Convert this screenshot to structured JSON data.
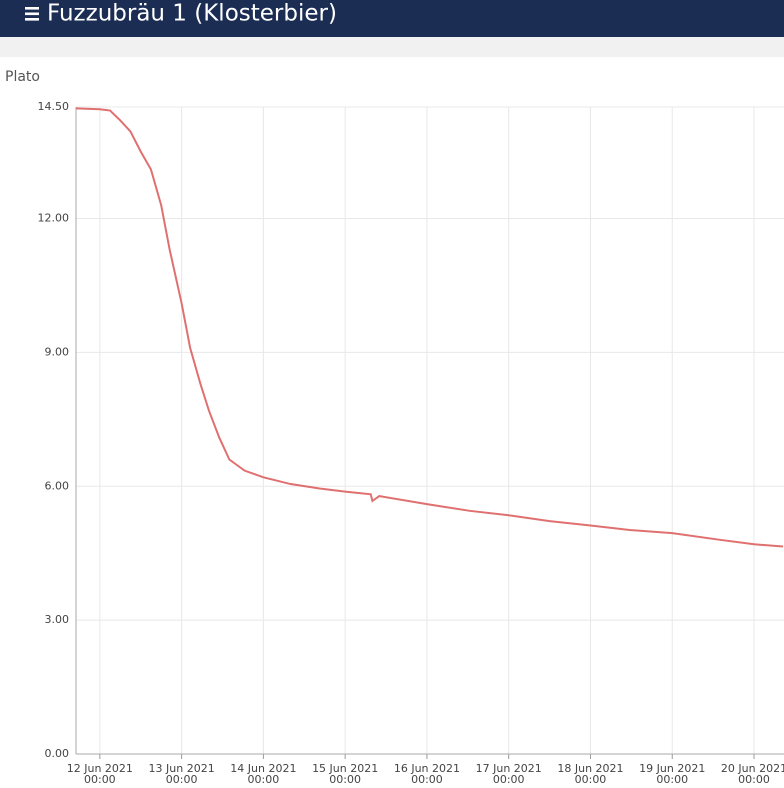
{
  "header": {
    "title": "Fuzzubräu 1 (Klosterbier)"
  },
  "chart_data": {
    "type": "line",
    "y_label": "Plato",
    "x": [
      "2021-06-11 17:00",
      "2021-06-12 00:00",
      "2021-06-12 03:00",
      "2021-06-12 06:00",
      "2021-06-12 09:00",
      "2021-06-12 12:00",
      "2021-06-12 15:00",
      "2021-06-12 18:00",
      "2021-06-12 20:30",
      "2021-06-13 00:00",
      "2021-06-13 02:30",
      "2021-06-13 05:30",
      "2021-06-13 08:00",
      "2021-06-13 11:00",
      "2021-06-13 14:00",
      "2021-06-13 18:30",
      "2021-06-14 00:00",
      "2021-06-14 08:00",
      "2021-06-14 16:30",
      "2021-06-15 00:00",
      "2021-06-15 07:30",
      "2021-06-15 08:00",
      "2021-06-15 10:00",
      "2021-06-16 00:00",
      "2021-06-16 12:30",
      "2021-06-17 00:00",
      "2021-06-17 12:00",
      "2021-06-18 00:00",
      "2021-06-18 11:30",
      "2021-06-19 00:00",
      "2021-06-19 14:00",
      "2021-06-20 00:00",
      "2021-06-20 08:30"
    ],
    "series": [
      {
        "name": "Plato",
        "color": "#e07070",
        "values": [
          14.47,
          14.45,
          14.42,
          14.2,
          13.95,
          13.5,
          13.1,
          12.3,
          11.3,
          10.1,
          9.1,
          8.3,
          7.7,
          7.1,
          6.6,
          6.35,
          6.2,
          6.05,
          5.95,
          5.88,
          5.82,
          5.67,
          5.78,
          5.6,
          5.45,
          5.35,
          5.22,
          5.12,
          5.02,
          4.95,
          4.8,
          4.7,
          4.65
        ]
      }
    ],
    "xlim": [
      "2021-06-11 17:00",
      "2021-06-20 08:48"
    ],
    "xticks": [
      {
        "value": "2021-06-12 00:00",
        "label": "12 Jun 2021\n00:00"
      },
      {
        "value": "2021-06-13 00:00",
        "label": "13 Jun 2021\n00:00"
      },
      {
        "value": "2021-06-14 00:00",
        "label": "14 Jun 2021\n00:00"
      },
      {
        "value": "2021-06-15 00:00",
        "label": "15 Jun 2021\n00:00"
      },
      {
        "value": "2021-06-16 00:00",
        "label": "16 Jun 2021\n00:00"
      },
      {
        "value": "2021-06-17 00:00",
        "label": "17 Jun 2021\n00:00"
      },
      {
        "value": "2021-06-18 00:00",
        "label": "18 Jun 2021\n00:00"
      },
      {
        "value": "2021-06-19 00:00",
        "label": "19 Jun 2021\n00:00"
      },
      {
        "value": "2021-06-20 00:00",
        "label": "20 Jun 2021\n00:00"
      }
    ],
    "ylim": [
      0,
      14.5
    ],
    "yticks": [
      {
        "value": 0,
        "label": "0.00"
      },
      {
        "value": 3,
        "label": "3.00"
      },
      {
        "value": 6,
        "label": "6.00"
      },
      {
        "value": 9,
        "label": "9.00"
      },
      {
        "value": 12,
        "label": "12.00"
      },
      {
        "value": 14.5,
        "label": "14.50"
      }
    ],
    "grid": true
  }
}
